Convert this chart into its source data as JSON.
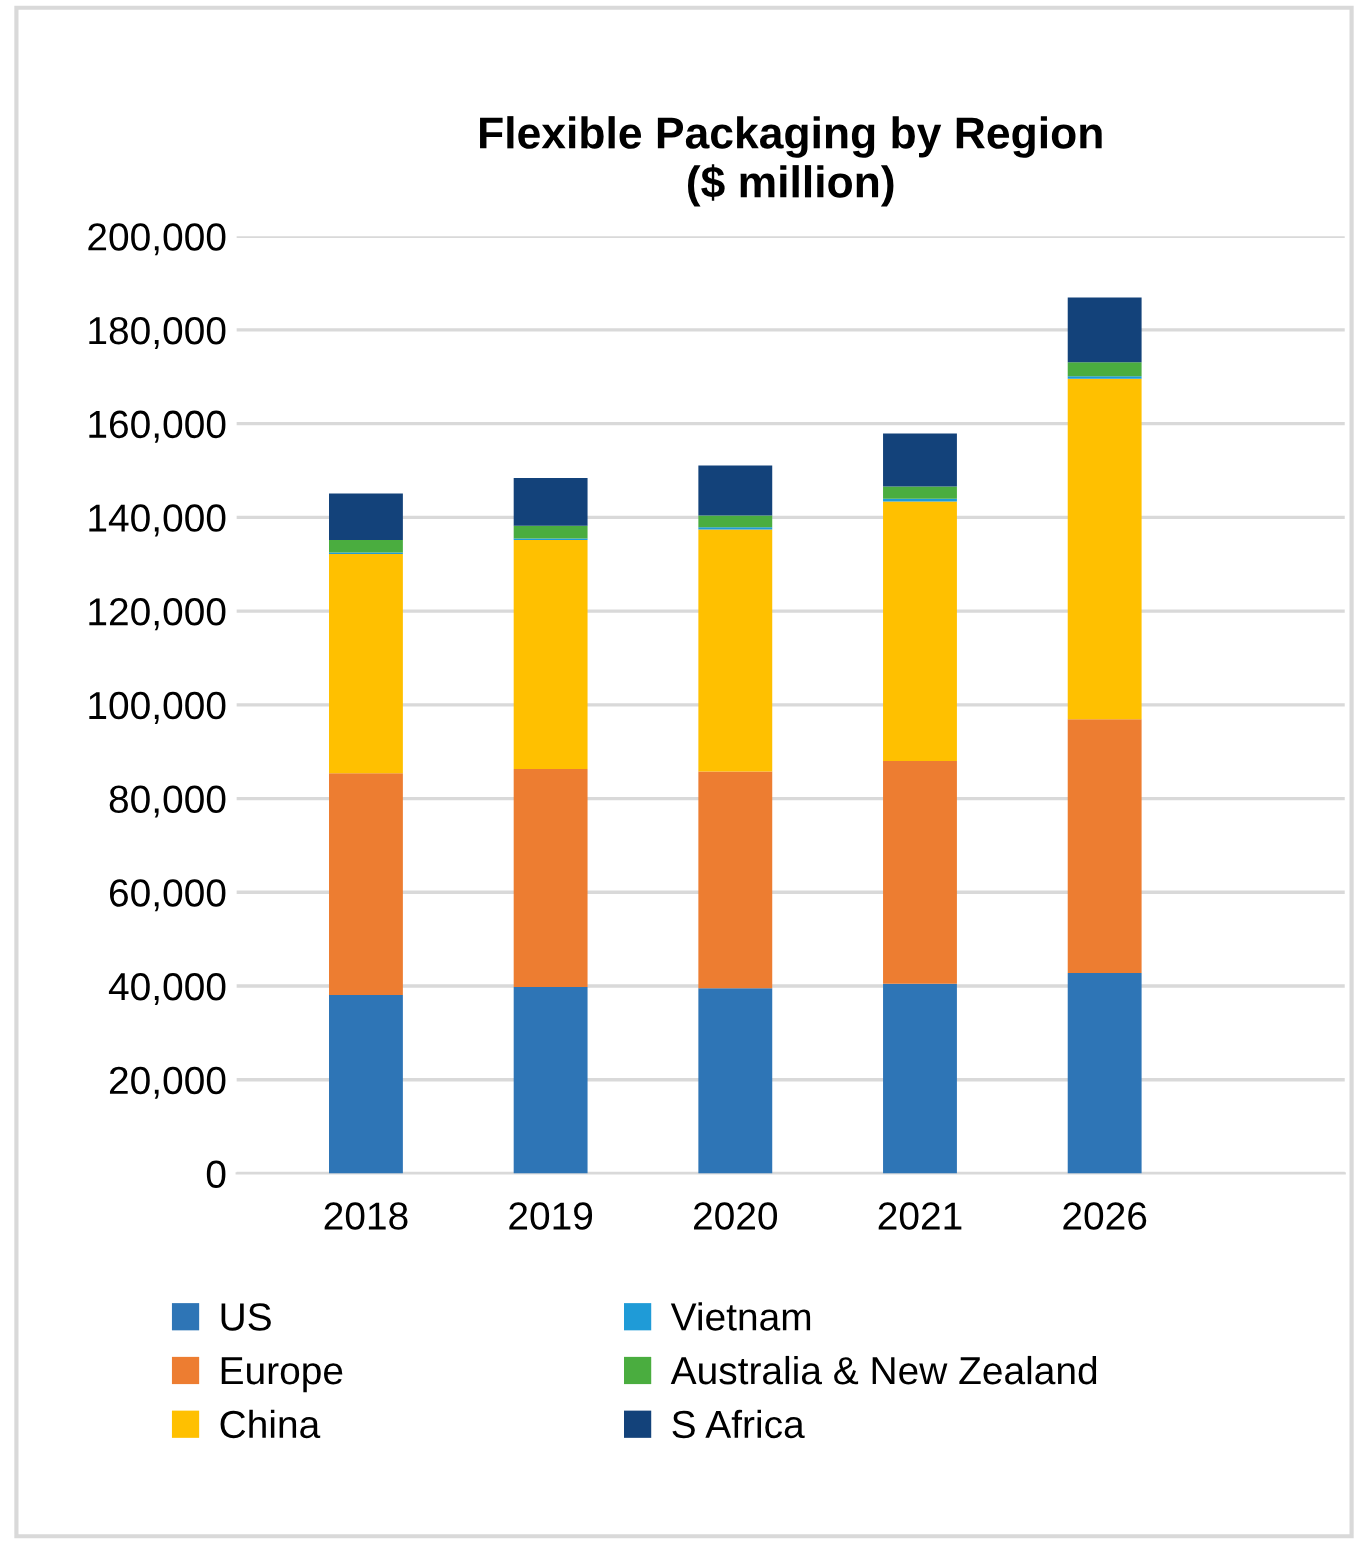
{
  "chart_data": {
    "type": "bar",
    "title": "Flexible Packaging by Region\n($ million)",
    "stacked": true,
    "categories": [
      "2018",
      "2019",
      "2020",
      "2021",
      "2026"
    ],
    "series": [
      {
        "name": "US",
        "color": "#2e75b6",
        "values": [
          38100,
          39800,
          39500,
          40500,
          42800
        ]
      },
      {
        "name": "Europe",
        "color": "#ed7d31",
        "values": [
          47300,
          46500,
          46300,
          47500,
          54100
        ]
      },
      {
        "name": "China",
        "color": "#ffc000",
        "values": [
          46800,
          48900,
          51600,
          55400,
          72700
        ]
      },
      {
        "name": "Vietnam",
        "color": "#1f9bd7",
        "values": [
          300,
          300,
          500,
          600,
          500
        ]
      },
      {
        "name": "Australia & New Zealand",
        "color": "#4aad3f",
        "values": [
          2700,
          2700,
          2500,
          2600,
          3000
        ]
      },
      {
        "name": "S Africa",
        "color": "#13427a",
        "values": [
          9900,
          10200,
          10700,
          11300,
          13800
        ]
      }
    ],
    "ylim": [
      0,
      200000
    ],
    "yticks": [
      {
        "value": 0,
        "label": "0"
      },
      {
        "value": 20000,
        "label": "20,000"
      },
      {
        "value": 40000,
        "label": "40,000"
      },
      {
        "value": 60000,
        "label": "60,000"
      },
      {
        "value": 80000,
        "label": "80,000"
      },
      {
        "value": 100000,
        "label": "100,000"
      },
      {
        "value": 120000,
        "label": "120,000"
      },
      {
        "value": 140000,
        "label": "140,000"
      },
      {
        "value": 160000,
        "label": "160,000"
      },
      {
        "value": 180000,
        "label": "180,000"
      },
      {
        "value": 200000,
        "label": "200,000"
      }
    ],
    "grid": "y",
    "legend": "bottom"
  }
}
